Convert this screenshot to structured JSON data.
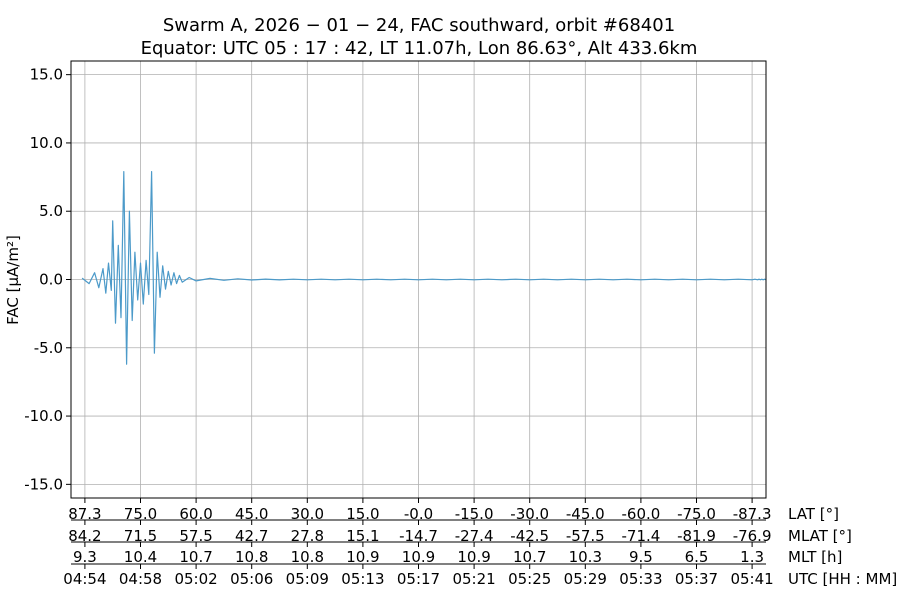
{
  "chart_data": {
    "type": "line",
    "title_line1": "Swarm A,  2026 − 01 − 24,  FAC southward,  orbit #68401",
    "title_line2": "Equator:  UTC 05 : 17 : 42,  LT 11.07h,  Lon 86.63°,  Alt 433.6km",
    "ylabel": "FAC [µA/m²]",
    "ylim": [
      -16,
      16
    ],
    "yticks": [
      -15.0,
      -10.0,
      -5.0,
      0.0,
      5.0,
      10.0,
      15.0
    ],
    "ytick_labels": [
      "-15.0",
      "-10.0",
      "-5.0",
      "0.0",
      "5.0",
      "10.0",
      "15.0"
    ],
    "xlim_minutes": [
      -1,
      49
    ],
    "xticks_minutes": [
      0,
      4,
      8,
      12,
      16,
      20,
      24,
      28,
      32,
      36,
      40,
      44,
      48
    ],
    "x_rows": [
      {
        "label": "LAT [°]",
        "values": [
          "87.3",
          "75.0",
          "60.0",
          "45.0",
          "30.0",
          "15.0",
          "-0.0",
          "-15.0",
          "-30.0",
          "-45.0",
          "-60.0",
          "-75.0",
          "-87.3"
        ]
      },
      {
        "label": "MLAT [°]",
        "values": [
          "84.2",
          "71.5",
          "57.5",
          "42.7",
          "27.8",
          "15.1",
          "-14.7",
          "-27.4",
          "-42.5",
          "-57.5",
          "-71.4",
          "-81.9",
          "-76.9"
        ]
      },
      {
        "label": "MLT [h]",
        "values": [
          "9.3",
          "10.4",
          "10.7",
          "10.8",
          "10.8",
          "10.9",
          "10.9",
          "10.9",
          "10.7",
          "10.3",
          "9.5",
          "6.5",
          "1.3"
        ]
      },
      {
        "label": "UTC [HH : MM]",
        "values": [
          "04:54",
          "04:58",
          "05:02",
          "05:06",
          "05:09",
          "05:13",
          "05:17",
          "05:21",
          "05:25",
          "05:29",
          "05:33",
          "05:37",
          "05:41"
        ]
      }
    ],
    "grid": true,
    "line_color": "#4c9ac9",
    "series": [
      {
        "segments": [
          {
            "x": [
              -0.2,
              0.3,
              0.7,
              1.0,
              1.3,
              1.5,
              1.7,
              1.9,
              2.0,
              2.2,
              2.4,
              2.6,
              2.8,
              3.0,
              3.2,
              3.4,
              3.6,
              3.8,
              4.0,
              4.2,
              4.4,
              4.6,
              4.8,
              5.0,
              5.2,
              5.4,
              5.6,
              5.8,
              6.0,
              6.2,
              6.4,
              6.6,
              6.8,
              7.0,
              7.5,
              8.0,
              9.0,
              10.0,
              11.0,
              12.0,
              13.0,
              14.0,
              15.0,
              16.0,
              17.0,
              18.0,
              19.0,
              20.0,
              21.0,
              22.0,
              23.0,
              24.0,
              25.0,
              26.0,
              27.0,
              28.0,
              29.0,
              30.0,
              31.0,
              32.0,
              33.0,
              34.0,
              35.0,
              36.0,
              37.0,
              38.0,
              39.0,
              40.0,
              41.0,
              42.0,
              43.0,
              44.0,
              45.0,
              46.0,
              47.0,
              48.0,
              48.2,
              48.4,
              48.5,
              48.6,
              48.7,
              48.8,
              48.9,
              49.0
            ],
            "y": [
              0.1,
              -0.3,
              0.5,
              -0.6,
              0.8,
              -1.0,
              1.2,
              -0.8,
              4.3,
              -3.2,
              2.5,
              -2.8,
              7.9,
              -6.2,
              5.0,
              -3.0,
              2.0,
              -1.5,
              1.2,
              -1.8,
              1.4,
              -1.1,
              7.9,
              -5.4,
              2.0,
              -1.3,
              1.0,
              -0.7,
              0.6,
              -0.4,
              0.5,
              -0.3,
              0.3,
              -0.2,
              0.15,
              -0.1,
              0.08,
              -0.06,
              0.05,
              -0.04,
              0.03,
              -0.03,
              0.02,
              -0.02,
              0.02,
              -0.02,
              0.02,
              -0.02,
              0.02,
              -0.02,
              0.02,
              -0.02,
              0.02,
              -0.02,
              0.02,
              -0.02,
              0.02,
              -0.02,
              0.02,
              -0.02,
              0.02,
              -0.02,
              0.02,
              -0.02,
              0.02,
              -0.02,
              0.02,
              -0.02,
              0.02,
              -0.02,
              0.02,
              -0.02,
              0.02,
              -0.02,
              0.02,
              -0.02,
              0.02,
              -0.02,
              0.02,
              -0.02,
              0.02,
              -0.02,
              0.02,
              -0.02
            ]
          }
        ]
      }
    ]
  }
}
